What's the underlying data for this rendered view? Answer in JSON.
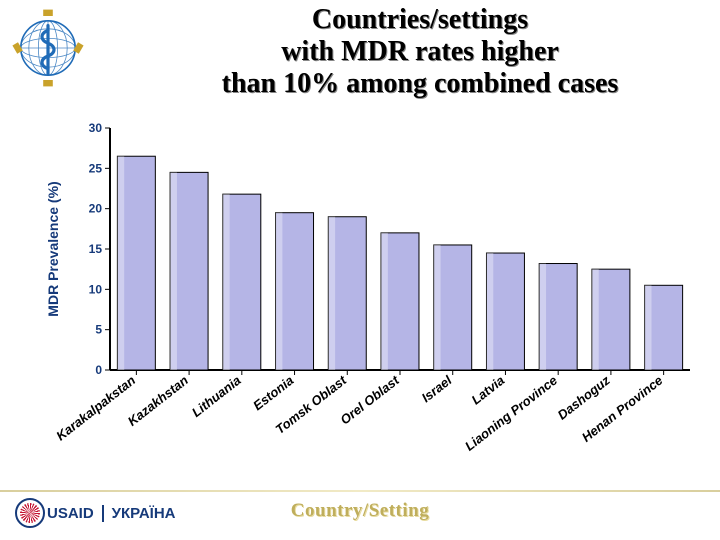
{
  "title_line1": "Countries/settings",
  "title_line2": "with MDR rates higher",
  "title_line3": "than 10% among combined cases",
  "country_setting_label": "Country/Setting",
  "usaid_label": "USAID",
  "ukraine_label": "УКРАЇНА",
  "who_logo": {
    "blue": "#1f6bb7"
  },
  "chart": {
    "type": "bar",
    "ylabel": "MDR Prevalence (%)",
    "ylabel_fontsize": 14,
    "ylabel_color": "#163a7a",
    "ylim": [
      0,
      30
    ],
    "ytick_step": 5,
    "ytick_fontsize": 12,
    "ytick_color": "#163a7a",
    "xlabel_fontsize": 13,
    "xlabel_color": "#000000",
    "xlabel_rotate_deg": -38,
    "plot_bg": "#ffffff",
    "axis_color": "#000000",
    "bar_fill": "#b5b5e6",
    "bar_stroke": "#000000",
    "bar_width_ratio": 0.72,
    "categories": [
      "Karakalpakstan",
      "Kazakhstan",
      "Lithuania",
      "Estonia",
      "Tomsk Oblast",
      "Orel Oblast",
      "Israel",
      "Latvia",
      "Liaoning Province",
      "Dashoguz",
      "Henan Province"
    ],
    "values": [
      26.5,
      24.5,
      21.8,
      19.5,
      19.0,
      17.0,
      15.5,
      14.5,
      13.2,
      12.5,
      10.5
    ]
  }
}
